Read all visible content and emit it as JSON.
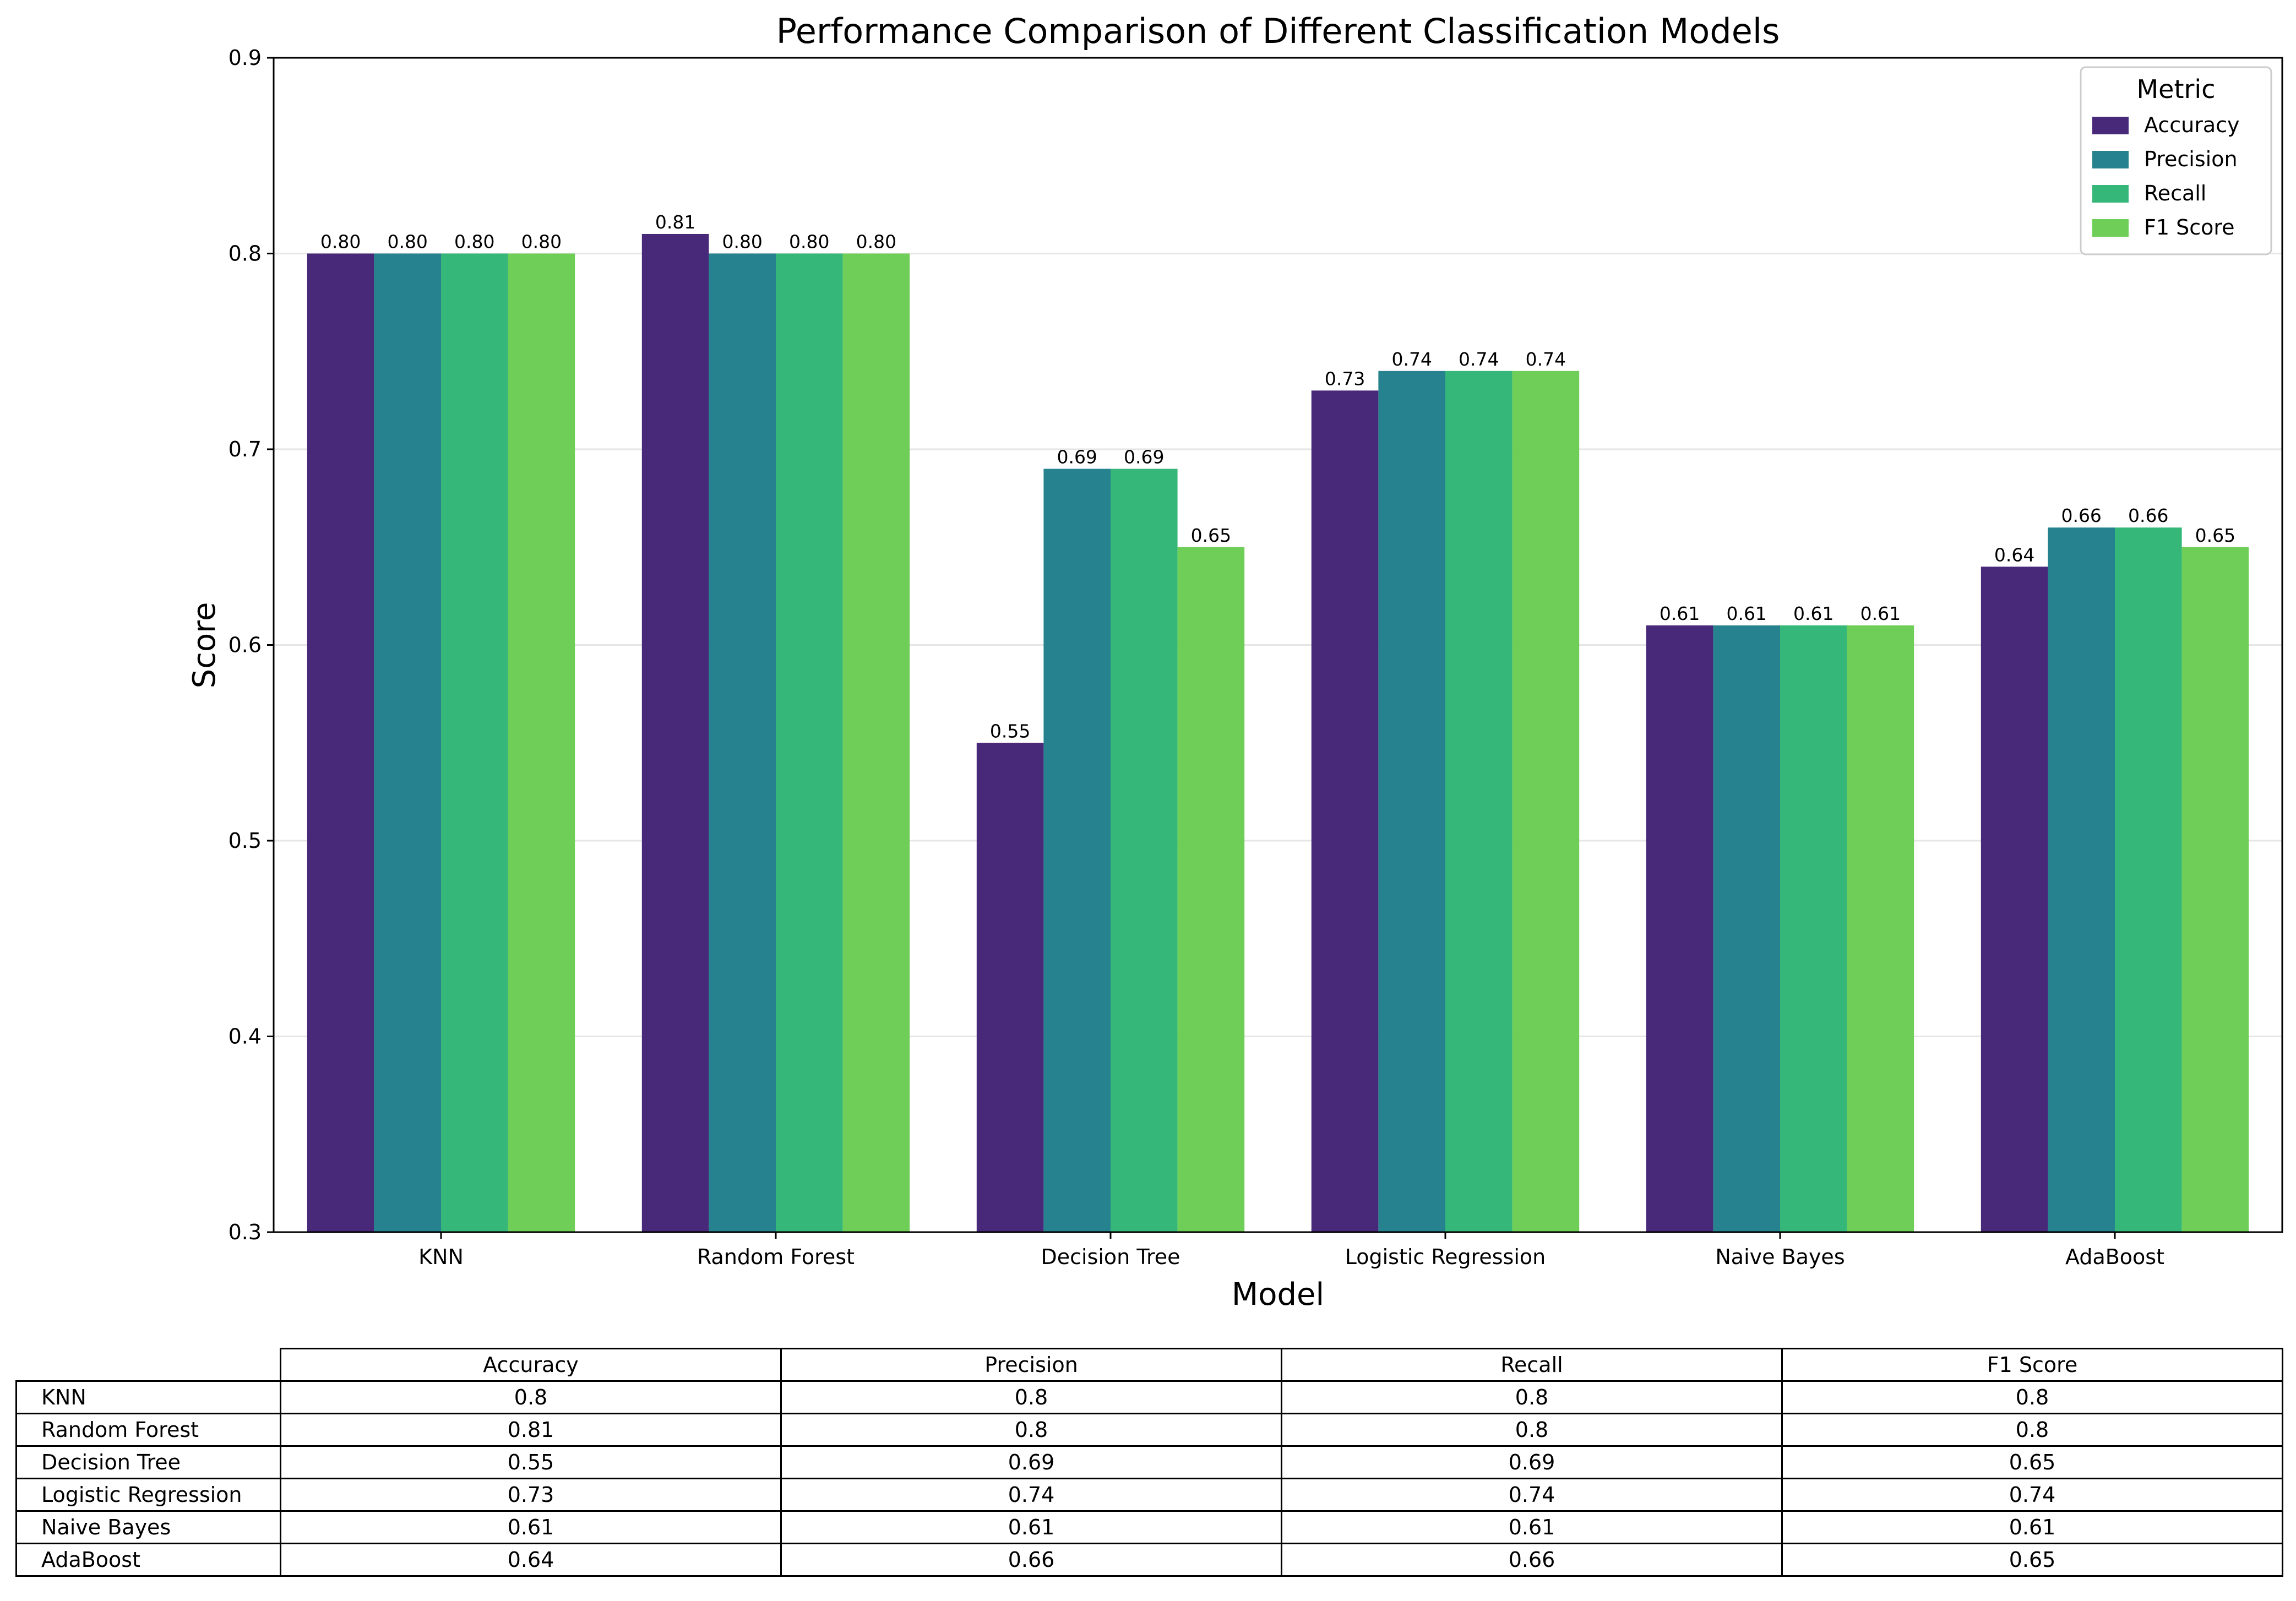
{
  "chart_data": {
    "type": "bar",
    "title": "Performance Comparison of Different Classification Models",
    "xlabel": "Model",
    "ylabel": "Score",
    "ylim": [
      0.3,
      0.9
    ],
    "yticks": [
      "0.3",
      "0.4",
      "0.5",
      "0.6",
      "0.7",
      "0.8",
      "0.9"
    ],
    "grid": "horizontal",
    "legend": {
      "title": "Metric",
      "position": "top-right"
    },
    "categories": [
      "KNN",
      "Random Forest",
      "Decision Tree",
      "Logistic Regression",
      "Naive Bayes",
      "AdaBoost"
    ],
    "series": [
      {
        "name": "Accuracy",
        "color": "#482878",
        "values": [
          0.8,
          0.81,
          0.55,
          0.73,
          0.61,
          0.64
        ],
        "labels": [
          "0.80",
          "0.81",
          "0.55",
          "0.73",
          "0.61",
          "0.64"
        ]
      },
      {
        "name": "Precision",
        "color": "#26828e",
        "values": [
          0.8,
          0.8,
          0.69,
          0.74,
          0.61,
          0.66
        ],
        "labels": [
          "0.80",
          "0.80",
          "0.69",
          "0.74",
          "0.61",
          "0.66"
        ]
      },
      {
        "name": "Recall",
        "color": "#35b779",
        "values": [
          0.8,
          0.8,
          0.69,
          0.74,
          0.61,
          0.66
        ],
        "labels": [
          "0.80",
          "0.80",
          "0.69",
          "0.74",
          "0.61",
          "0.66"
        ]
      },
      {
        "name": "F1 Score",
        "color": "#6ece58",
        "values": [
          0.8,
          0.8,
          0.65,
          0.74,
          0.61,
          0.65
        ],
        "labels": [
          "0.80",
          "0.80",
          "0.65",
          "0.74",
          "0.61",
          "0.65"
        ]
      }
    ]
  },
  "table": {
    "columns": [
      "Accuracy",
      "Precision",
      "Recall",
      "F1 Score"
    ],
    "rows": [
      {
        "label": "KNN",
        "values": [
          "0.8",
          "0.8",
          "0.8",
          "0.8"
        ]
      },
      {
        "label": "Random Forest",
        "values": [
          "0.81",
          "0.8",
          "0.8",
          "0.8"
        ]
      },
      {
        "label": "Decision Tree",
        "values": [
          "0.55",
          "0.69",
          "0.69",
          "0.65"
        ]
      },
      {
        "label": "Logistic Regression",
        "values": [
          "0.73",
          "0.74",
          "0.74",
          "0.74"
        ]
      },
      {
        "label": "Naive Bayes",
        "values": [
          "0.61",
          "0.61",
          "0.61",
          "0.61"
        ]
      },
      {
        "label": "AdaBoost",
        "values": [
          "0.64",
          "0.66",
          "0.66",
          "0.65"
        ]
      }
    ]
  }
}
